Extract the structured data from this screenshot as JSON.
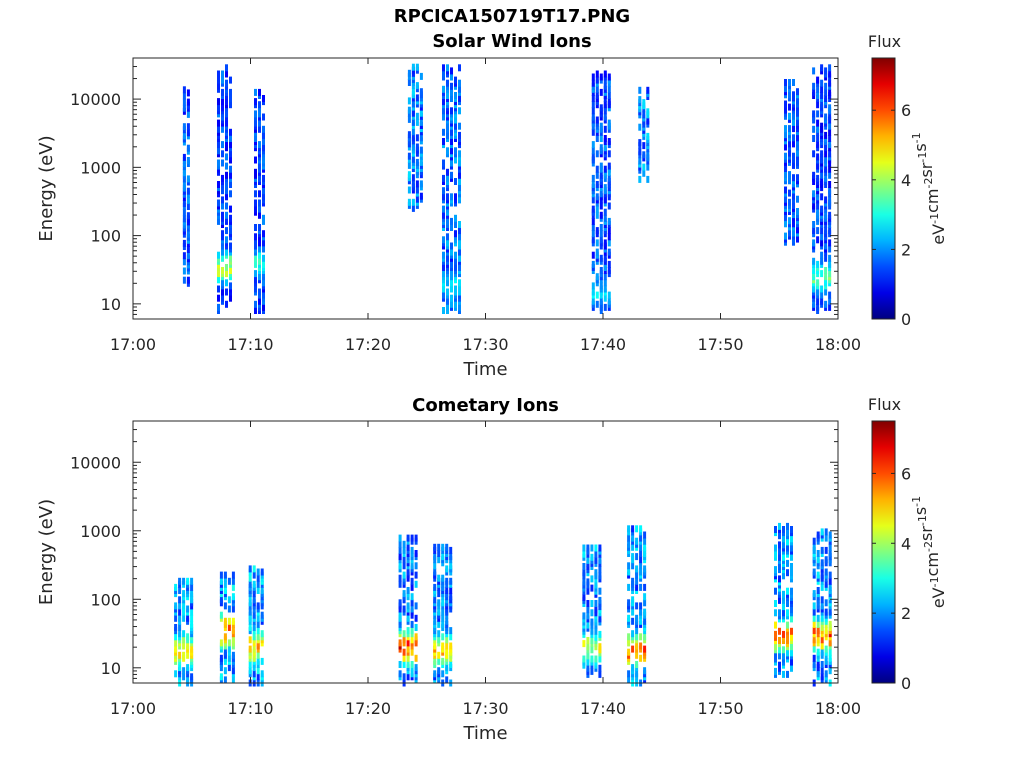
{
  "figure": {
    "title_line1": "RPCICA150719T17.PNG"
  },
  "colormap": "jet",
  "chart_data": [
    {
      "type": "heatmap",
      "title": "Solar Wind Ions",
      "xlabel": "Time",
      "ylabel": "Energy (eV)",
      "x_ticks": [
        "17:00",
        "17:10",
        "17:20",
        "17:30",
        "17:40",
        "17:50",
        "18:00"
      ],
      "x_range_minutes": [
        0,
        60
      ],
      "y_scale": "log",
      "y_ticks": [
        "10",
        "100",
        "1000",
        "10000"
      ],
      "ylim": [
        6,
        40000
      ],
      "colorbar": {
        "label": "Flux",
        "units": "eV-1cm-2sr-1s-1",
        "ticks": [
          "0",
          "2",
          "4",
          "6"
        ],
        "range": [
          0,
          7.5
        ]
      },
      "bursts": [
        {
          "t": 4.5,
          "w": 0.5,
          "emin": 20,
          "emax": 15000,
          "fmax": 2.2,
          "hot_e": 12,
          "hot_f": 3.0
        },
        {
          "t": 7.8,
          "w": 1.3,
          "emin": 8,
          "emax": 30000,
          "fmax": 2.0,
          "hot_e": 35,
          "hot_f": 5.0
        },
        {
          "t": 10.8,
          "w": 1.0,
          "emin": 8,
          "emax": 15000,
          "fmax": 2.0,
          "hot_e": 40,
          "hot_f": 3.5
        },
        {
          "t": 24.0,
          "w": 1.2,
          "emin": 250,
          "emax": 30000,
          "fmax": 2.6,
          "hot_e": 0,
          "hot_f": 0
        },
        {
          "t": 27.0,
          "w": 1.4,
          "emin": 8,
          "emax": 30000,
          "fmax": 2.4,
          "hot_e": 20,
          "hot_f": 3.0
        },
        {
          "t": 39.8,
          "w": 1.5,
          "emin": 8,
          "emax": 25000,
          "fmax": 2.2,
          "hot_e": 15,
          "hot_f": 3.0
        },
        {
          "t": 43.5,
          "w": 1.0,
          "emin": 600,
          "emax": 15000,
          "fmax": 2.6,
          "hot_e": 0,
          "hot_f": 0
        },
        {
          "t": 56.0,
          "w": 1.2,
          "emin": 80,
          "emax": 20000,
          "fmax": 2.2,
          "hot_e": 0,
          "hot_f": 0
        },
        {
          "t": 58.5,
          "w": 1.4,
          "emin": 8,
          "emax": 30000,
          "fmax": 2.0,
          "hot_e": 25,
          "hot_f": 4.0
        }
      ]
    },
    {
      "type": "heatmap",
      "title": "Cometary Ions",
      "xlabel": "Time",
      "ylabel": "Energy (eV)",
      "x_ticks": [
        "17:00",
        "17:10",
        "17:20",
        "17:30",
        "17:40",
        "17:50",
        "18:00"
      ],
      "x_range_minutes": [
        0,
        60
      ],
      "y_scale": "log",
      "y_ticks": [
        "10",
        "100",
        "1000",
        "10000"
      ],
      "ylim": [
        6,
        40000
      ],
      "colorbar": {
        "label": "Flux",
        "units": "eV-1cm-2sr-1s-1",
        "ticks": [
          "0",
          "2",
          "4",
          "6"
        ],
        "range": [
          0,
          7.5
        ]
      },
      "bursts": [
        {
          "t": 4.2,
          "w": 1.4,
          "emin": 6,
          "emax": 200,
          "fmax": 2.8,
          "hot_e": 18,
          "hot_f": 5.5
        },
        {
          "t": 8.0,
          "w": 1.2,
          "emin": 6,
          "emax": 250,
          "fmax": 3.0,
          "hot_e": 35,
          "hot_f": 7.0
        },
        {
          "t": 10.5,
          "w": 1.3,
          "emin": 6,
          "emax": 300,
          "fmax": 3.0,
          "hot_e": 20,
          "hot_f": 6.0
        },
        {
          "t": 23.3,
          "w": 1.4,
          "emin": 6,
          "emax": 800,
          "fmax": 2.6,
          "hot_e": 20,
          "hot_f": 7.2
        },
        {
          "t": 26.3,
          "w": 1.5,
          "emin": 6,
          "emax": 600,
          "fmax": 2.6,
          "hot_e": 18,
          "hot_f": 5.8
        },
        {
          "t": 39.0,
          "w": 1.5,
          "emin": 8,
          "emax": 600,
          "fmax": 2.8,
          "hot_e": 20,
          "hot_f": 5.0
        },
        {
          "t": 42.8,
          "w": 1.5,
          "emin": 6,
          "emax": 1300,
          "fmax": 2.8,
          "hot_e": 18,
          "hot_f": 6.5
        },
        {
          "t": 55.3,
          "w": 1.5,
          "emin": 8,
          "emax": 1200,
          "fmax": 2.8,
          "hot_e": 30,
          "hot_f": 6.5
        },
        {
          "t": 58.6,
          "w": 1.5,
          "emin": 6,
          "emax": 1000,
          "fmax": 2.8,
          "hot_e": 30,
          "hot_f": 6.8
        }
      ]
    }
  ]
}
